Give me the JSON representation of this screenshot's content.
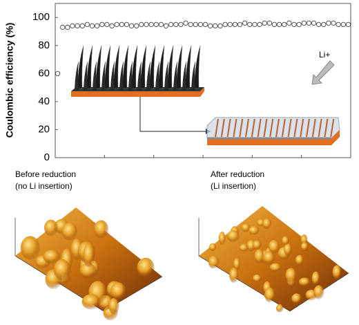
{
  "chart_data": {
    "type": "line",
    "ylabel": "Coulombic efficiency (%)",
    "xlim": [
      0,
      120
    ],
    "xticks": [
      20,
      40,
      60,
      80,
      100
    ],
    "ylim": [
      0,
      110
    ],
    "yticks": [
      0,
      20,
      40,
      60,
      80,
      100
    ],
    "marker_color": "#444444",
    "series": [
      {
        "x": [
          1,
          3,
          5,
          7,
          9,
          11,
          13,
          15,
          17,
          19,
          21,
          23,
          25,
          27,
          29,
          31,
          33,
          35,
          37,
          39,
          41,
          43,
          45,
          47,
          49,
          51,
          53,
          55,
          57,
          59,
          61,
          63,
          65,
          67,
          69,
          71,
          73,
          75,
          77,
          79,
          81,
          83,
          85,
          87,
          89,
          91,
          93,
          95,
          97,
          99,
          101,
          103,
          105,
          107,
          109,
          111,
          113,
          115,
          117,
          119
        ],
        "values": [
          60,
          93,
          93,
          94,
          94,
          94,
          95,
          94,
          94,
          95,
          95,
          94,
          95,
          95,
          95,
          94,
          94,
          95,
          95,
          95,
          95,
          95,
          94,
          95,
          95,
          95,
          96,
          95,
          95,
          95,
          95,
          94,
          94,
          94,
          95,
          95,
          95,
          95,
          96,
          95,
          95,
          95,
          96,
          96,
          95,
          95,
          95,
          96,
          95,
          95,
          96,
          96,
          96,
          95,
          95,
          96,
          96,
          95,
          95,
          95
        ]
      }
    ],
    "annotations": [
      "Li+"
    ]
  },
  "captions": [
    {
      "title": "Before reduction",
      "subtitle": "(no Li insertion)"
    },
    {
      "title": "After reduction",
      "subtitle": "(Li insertion)"
    }
  ]
}
